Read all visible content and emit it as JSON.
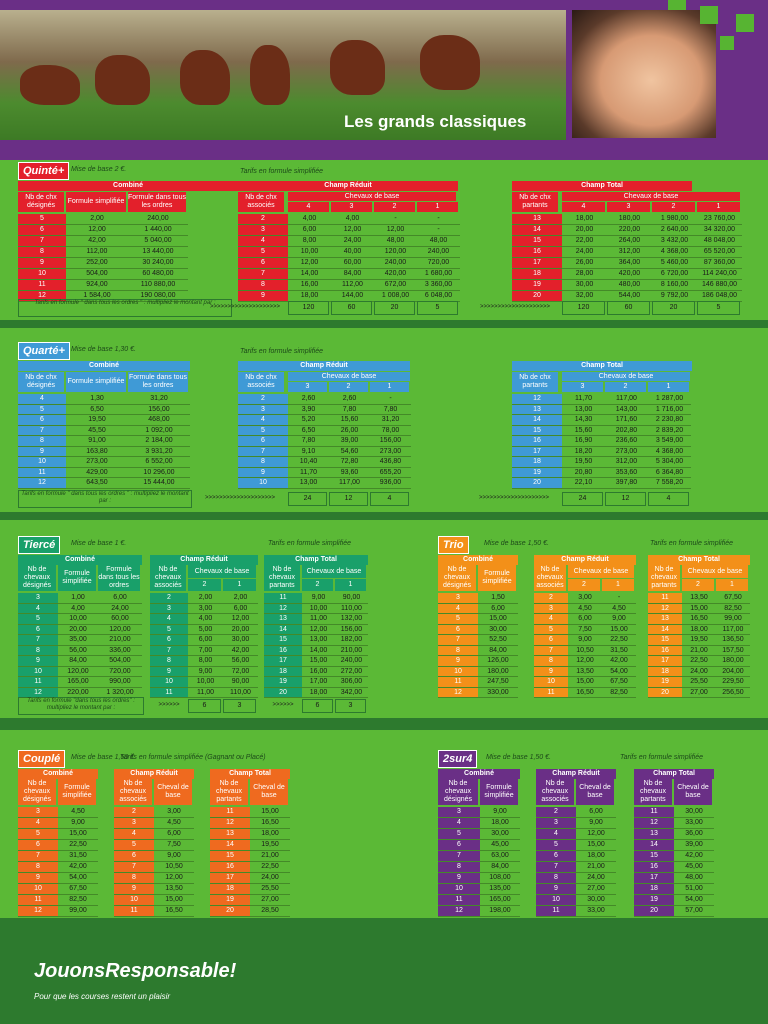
{
  "header": {
    "title": "Les grands classiques"
  },
  "quinte": {
    "label": "Quinté+",
    "base": "Mise de base 2 €.",
    "simp": "Tarifs en formule simplifiée",
    "combine": {
      "title": "Combiné",
      "h": [
        "Nb de chx désignés",
        "Formule simplifiée",
        "Formule dans tous les ordres"
      ],
      "rows": [
        [
          "5",
          "2,00",
          "240,00"
        ],
        [
          "6",
          "12,00",
          "1 440,00"
        ],
        [
          "7",
          "42,00",
          "5 040,00"
        ],
        [
          "8",
          "112,00",
          "13 440,00"
        ],
        [
          "9",
          "252,00",
          "30 240,00"
        ],
        [
          "10",
          "504,00",
          "60 480,00"
        ],
        [
          "11",
          "924,00",
          "110 880,00"
        ],
        [
          "12",
          "1 584,00",
          "190 080,00"
        ]
      ]
    },
    "reduit": {
      "title": "Champ Réduit",
      "h0": "Nb de chx associés",
      "grp": "Chevaux de base",
      "sub": [
        "4",
        "3",
        "2",
        "1"
      ],
      "rows": [
        [
          "2",
          "4,00",
          "4,00",
          "-",
          "-"
        ],
        [
          "3",
          "6,00",
          "12,00",
          "12,00",
          "-"
        ],
        [
          "4",
          "8,00",
          "24,00",
          "48,00",
          "48,00"
        ],
        [
          "5",
          "10,00",
          "40,00",
          "120,00",
          "240,00"
        ],
        [
          "6",
          "12,00",
          "60,00",
          "240,00",
          "720,00"
        ],
        [
          "7",
          "14,00",
          "84,00",
          "420,00",
          "1 680,00"
        ],
        [
          "8",
          "16,00",
          "112,00",
          "672,00",
          "3 360,00"
        ],
        [
          "9",
          "18,00",
          "144,00",
          "1 008,00",
          "6 048,00"
        ]
      ],
      "mult": [
        "120",
        "60",
        "20",
        "5"
      ]
    },
    "total": {
      "title": "Champ Total",
      "h0": "Nb de chx partants",
      "grp": "Chevaux de base",
      "sub": [
        "4",
        "3",
        "2",
        "1"
      ],
      "rows": [
        [
          "13",
          "18,00",
          "180,00",
          "1 980,00",
          "23 760,00"
        ],
        [
          "14",
          "20,00",
          "220,00",
          "2 640,00",
          "34 320,00"
        ],
        [
          "15",
          "22,00",
          "264,00",
          "3 432,00",
          "48 048,00"
        ],
        [
          "16",
          "24,00",
          "312,00",
          "4 368,00",
          "65 520,00"
        ],
        [
          "17",
          "26,00",
          "364,00",
          "5 460,00",
          "87 360,00"
        ],
        [
          "18",
          "28,00",
          "420,00",
          "6 720,00",
          "114 240,00"
        ],
        [
          "19",
          "30,00",
          "480,00",
          "8 160,00",
          "146 880,00"
        ],
        [
          "20",
          "32,00",
          "544,00",
          "9 792,00",
          "186 048,00"
        ]
      ],
      "mult": [
        "120",
        "60",
        "20",
        "5"
      ]
    },
    "note": "Tarifs en formule \" dans tous les ordres \" : multipliez le montant par :",
    "arrows": ">>>>>>>>>>>>>>>>>>>>"
  },
  "quarte": {
    "label": "Quarté+",
    "base": "Mise de base 1,30 €.",
    "simp": "Tarifs en formule simplifiée",
    "combine": {
      "title": "Combiné",
      "h": [
        "Nb de chx désignés",
        "Formule simplifiée",
        "Formule dans tous les ordres"
      ],
      "rows": [
        [
          "4",
          "1,30",
          "31,20"
        ],
        [
          "5",
          "6,50",
          "156,00"
        ],
        [
          "6",
          "19,50",
          "468,00"
        ],
        [
          "7",
          "45,50",
          "1 092,00"
        ],
        [
          "8",
          "91,00",
          "2 184,00"
        ],
        [
          "9",
          "163,80",
          "3 931,20"
        ],
        [
          "10",
          "273,00",
          "6 552,00"
        ],
        [
          "11",
          "429,00",
          "10 296,00"
        ],
        [
          "12",
          "643,50",
          "15 444,00"
        ]
      ]
    },
    "reduit": {
      "title": "Champ Réduit",
      "h0": "Nb de chx associés",
      "grp": "Chevaux de base",
      "sub": [
        "3",
        "2",
        "1"
      ],
      "rows": [
        [
          "2",
          "2,60",
          "2,60",
          "-"
        ],
        [
          "3",
          "3,90",
          "7,80",
          "7,80"
        ],
        [
          "4",
          "5,20",
          "15,60",
          "31,20"
        ],
        [
          "5",
          "6,50",
          "26,00",
          "78,00"
        ],
        [
          "6",
          "7,80",
          "39,00",
          "156,00"
        ],
        [
          "7",
          "9,10",
          "54,60",
          "273,00"
        ],
        [
          "8",
          "10,40",
          "72,80",
          "436,80"
        ],
        [
          "9",
          "11,70",
          "93,60",
          "655,20"
        ],
        [
          "10",
          "13,00",
          "117,00",
          "936,00"
        ]
      ],
      "mult": [
        "24",
        "12",
        "4"
      ]
    },
    "total": {
      "title": "Champ Total",
      "h0": "Nb de chx partants",
      "grp": "Chevaux de base",
      "sub": [
        "3",
        "2",
        "1"
      ],
      "rows": [
        [
          "12",
          "11,70",
          "117,00",
          "1 287,00"
        ],
        [
          "13",
          "13,00",
          "143,00",
          "1 716,00"
        ],
        [
          "14",
          "14,30",
          "171,60",
          "2 230,80"
        ],
        [
          "15",
          "15,60",
          "202,80",
          "2 839,20"
        ],
        [
          "16",
          "16,90",
          "236,60",
          "3 549,00"
        ],
        [
          "17",
          "18,20",
          "273,00",
          "4 368,00"
        ],
        [
          "18",
          "19,50",
          "312,00",
          "5 304,00"
        ],
        [
          "19",
          "20,80",
          "353,60",
          "6 364,80"
        ],
        [
          "20",
          "22,10",
          "397,80",
          "7 558,20"
        ]
      ],
      "mult": [
        "24",
        "12",
        "4"
      ]
    },
    "note": "Tarifs en formule \" dans tous les ordres \" : multipliez le montant par :",
    "arrows": ">>>>>>>>>>>>>>>>>>>>"
  },
  "tierce": {
    "label": "Tiercé",
    "base": "Mise de base 1 €.",
    "simp": "Tarifs en formule simplifiée",
    "combine": {
      "title": "Combiné",
      "h": [
        "Nb de chevaux désignés",
        "Formule simplifiée",
        "Formule dans tous les ordres"
      ],
      "rows": [
        [
          "3",
          "1,00",
          "6,00"
        ],
        [
          "4",
          "4,00",
          "24,00"
        ],
        [
          "5",
          "10,00",
          "60,00"
        ],
        [
          "6",
          "20,00",
          "120,00"
        ],
        [
          "7",
          "35,00",
          "210,00"
        ],
        [
          "8",
          "56,00",
          "336,00"
        ],
        [
          "9",
          "84,00",
          "504,00"
        ],
        [
          "10",
          "120,00",
          "720,00"
        ],
        [
          "11",
          "165,00",
          "990,00"
        ],
        [
          "12",
          "220,00",
          "1 320,00"
        ]
      ]
    },
    "reduit": {
      "title": "Champ Réduit",
      "h0": "Nb de chevaux associés",
      "grp": "Chevaux de base",
      "sub": [
        "2",
        "1"
      ],
      "rows": [
        [
          "2",
          "2,00",
          "2,00"
        ],
        [
          "3",
          "3,00",
          "6,00"
        ],
        [
          "4",
          "4,00",
          "12,00"
        ],
        [
          "5",
          "5,00",
          "20,00"
        ],
        [
          "6",
          "6,00",
          "30,00"
        ],
        [
          "7",
          "7,00",
          "42,00"
        ],
        [
          "8",
          "8,00",
          "56,00"
        ],
        [
          "9",
          "9,00",
          "72,00"
        ],
        [
          "10",
          "10,00",
          "90,00"
        ],
        [
          "11",
          "11,00",
          "110,00"
        ]
      ],
      "mult": [
        "6",
        "3"
      ]
    },
    "total": {
      "title": "Champ Total",
      "h0": "Nb de chevaux partants",
      "grp": "Chevaux de base",
      "sub": [
        "2",
        "1"
      ],
      "rows": [
        [
          "11",
          "9,00",
          "90,00"
        ],
        [
          "12",
          "10,00",
          "110,00"
        ],
        [
          "13",
          "11,00",
          "132,00"
        ],
        [
          "14",
          "12,00",
          "156,00"
        ],
        [
          "15",
          "13,00",
          "182,00"
        ],
        [
          "16",
          "14,00",
          "210,00"
        ],
        [
          "17",
          "15,00",
          "240,00"
        ],
        [
          "18",
          "16,00",
          "272,00"
        ],
        [
          "19",
          "17,00",
          "306,00"
        ],
        [
          "20",
          "18,00",
          "342,00"
        ]
      ],
      "mult": [
        "6",
        "3"
      ]
    },
    "note": "Tarifs en formule \"dans tous les ordres\" : multipliez le montant par :",
    "arrows": ">>>>>>"
  },
  "trio": {
    "label": "Trio",
    "base": "Mise de base 1,50 €.",
    "simp": "Tarifs en formule simplifiée",
    "combine": {
      "title": "Combiné",
      "h": [
        "Nb de chevaux désignés",
        "Formule simplifiée"
      ],
      "rows": [
        [
          "3",
          "1,50"
        ],
        [
          "4",
          "6,00"
        ],
        [
          "5",
          "15,00"
        ],
        [
          "6",
          "30,00"
        ],
        [
          "7",
          "52,50"
        ],
        [
          "8",
          "84,00"
        ],
        [
          "9",
          "126,00"
        ],
        [
          "10",
          "180,00"
        ],
        [
          "11",
          "247,50"
        ],
        [
          "12",
          "330,00"
        ]
      ]
    },
    "reduit": {
      "title": "Champ Réduit",
      "h0": "Nb de chevaux associés",
      "grp": "Chevaux de base",
      "sub": [
        "2",
        "1"
      ],
      "rows": [
        [
          "2",
          "3,00",
          "-"
        ],
        [
          "3",
          "4,50",
          "4,50"
        ],
        [
          "4",
          "6,00",
          "9,00"
        ],
        [
          "5",
          "7,50",
          "15,00"
        ],
        [
          "6",
          "9,00",
          "22,50"
        ],
        [
          "7",
          "10,50",
          "31,50"
        ],
        [
          "8",
          "12,00",
          "42,00"
        ],
        [
          "9",
          "13,50",
          "54,00"
        ],
        [
          "10",
          "15,00",
          "67,50"
        ],
        [
          "11",
          "16,50",
          "82,50"
        ]
      ]
    },
    "total": {
      "title": "Champ Total",
      "h0": "Nb de chevaux partants",
      "grp": "Chevaux de base",
      "sub": [
        "2",
        "1"
      ],
      "rows": [
        [
          "11",
          "13,50",
          "67,50"
        ],
        [
          "12",
          "15,00",
          "82,50"
        ],
        [
          "13",
          "16,50",
          "99,00"
        ],
        [
          "14",
          "18,00",
          "117,00"
        ],
        [
          "15",
          "19,50",
          "136,50"
        ],
        [
          "16",
          "21,00",
          "157,50"
        ],
        [
          "17",
          "22,50",
          "180,00"
        ],
        [
          "18",
          "24,00",
          "204,00"
        ],
        [
          "19",
          "25,50",
          "229,50"
        ],
        [
          "20",
          "27,00",
          "256,50"
        ]
      ]
    }
  },
  "couple": {
    "label": "Couplé",
    "base": "Mise de base 1,50 €.",
    "simp": "Tarifs en formule simplifiée (Gagnant ou Placé)",
    "combine": {
      "title": "Combiné",
      "h": [
        "Nb de chevaux désignés",
        "Formule simplifiée"
      ],
      "rows": [
        [
          "3",
          "4,50"
        ],
        [
          "4",
          "9,00"
        ],
        [
          "5",
          "15,00"
        ],
        [
          "6",
          "22,50"
        ],
        [
          "7",
          "31,50"
        ],
        [
          "8",
          "42,00"
        ],
        [
          "9",
          "54,00"
        ],
        [
          "10",
          "67,50"
        ],
        [
          "11",
          "82,50"
        ],
        [
          "12",
          "99,00"
        ]
      ]
    },
    "reduit": {
      "title": "Champ Réduit",
      "h": [
        "Nb de chevaux associés",
        "Cheval de base"
      ],
      "rows": [
        [
          "2",
          "3,00"
        ],
        [
          "3",
          "4,50"
        ],
        [
          "4",
          "6,00"
        ],
        [
          "5",
          "7,50"
        ],
        [
          "6",
          "9,00"
        ],
        [
          "7",
          "10,50"
        ],
        [
          "8",
          "12,00"
        ],
        [
          "9",
          "13,50"
        ],
        [
          "10",
          "15,00"
        ],
        [
          "11",
          "16,50"
        ]
      ]
    },
    "total": {
      "title": "Champ Total",
      "h": [
        "Nb de chevaux partants",
        "Cheval de base"
      ],
      "rows": [
        [
          "11",
          "15,00"
        ],
        [
          "12",
          "16,50"
        ],
        [
          "13",
          "18,00"
        ],
        [
          "14",
          "19,50"
        ],
        [
          "15",
          "21,00"
        ],
        [
          "16",
          "22,50"
        ],
        [
          "17",
          "24,00"
        ],
        [
          "18",
          "25,50"
        ],
        [
          "19",
          "27,00"
        ],
        [
          "20",
          "28,50"
        ]
      ]
    }
  },
  "deuxsur4": {
    "label": "2sur4",
    "base": "Mise de base 1,50 €.",
    "simp": "Tarifs en formule simplifiée",
    "combine": {
      "title": "Combiné",
      "h": [
        "Nb de chevaux désignés",
        "Formule simplifiée"
      ],
      "rows": [
        [
          "3",
          "9,00"
        ],
        [
          "4",
          "18,00"
        ],
        [
          "5",
          "30,00"
        ],
        [
          "6",
          "45,00"
        ],
        [
          "7",
          "63,00"
        ],
        [
          "8",
          "84,00"
        ],
        [
          "9",
          "108,00"
        ],
        [
          "10",
          "135,00"
        ],
        [
          "11",
          "165,00"
        ],
        [
          "12",
          "198,00"
        ]
      ]
    },
    "reduit": {
      "title": "Champ Réduit",
      "h": [
        "Nb de chevaux associés",
        "Cheval de base"
      ],
      "rows": [
        [
          "2",
          "6,00"
        ],
        [
          "3",
          "9,00"
        ],
        [
          "4",
          "12,00"
        ],
        [
          "5",
          "15,00"
        ],
        [
          "6",
          "18,00"
        ],
        [
          "7",
          "21,00"
        ],
        [
          "8",
          "24,00"
        ],
        [
          "9",
          "27,00"
        ],
        [
          "10",
          "30,00"
        ],
        [
          "11",
          "33,00"
        ]
      ]
    },
    "total": {
      "title": "Champ Total",
      "h": [
        "Nb de chevaux partants",
        "Cheval de base"
      ],
      "rows": [
        [
          "11",
          "30,00"
        ],
        [
          "12",
          "33,00"
        ],
        [
          "13",
          "36,00"
        ],
        [
          "14",
          "39,00"
        ],
        [
          "15",
          "42,00"
        ],
        [
          "16",
          "45,00"
        ],
        [
          "17",
          "48,00"
        ],
        [
          "18",
          "51,00"
        ],
        [
          "19",
          "54,00"
        ],
        [
          "20",
          "57,00"
        ]
      ]
    }
  },
  "colors": {
    "quinte": "#e3202b",
    "quarte": "#3f9ad6",
    "tierce": "#19a06a",
    "trio": "#f39019",
    "couple": "#ef6a1f",
    "deuxsur4": "#6a2f86"
  },
  "footer": {
    "logo": "JouonsResponsable!",
    "tagline": "Pour que les courses restent un plaisir"
  }
}
